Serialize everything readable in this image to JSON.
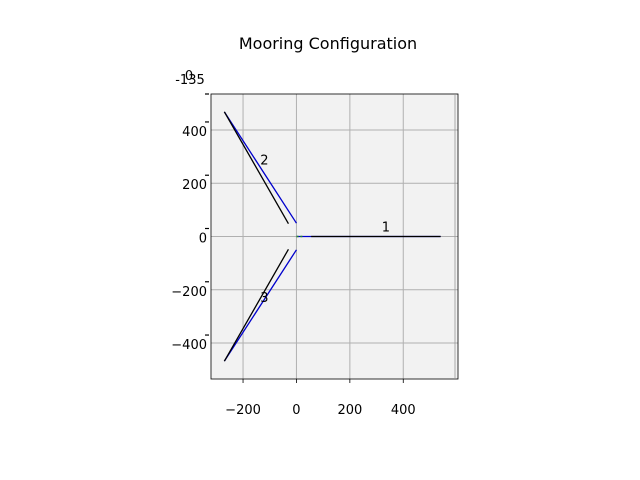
{
  "chart_data": {
    "type": "line",
    "title": "Mooring Configuration",
    "xlabel": "",
    "ylabel": "",
    "xlim": [
      -320,
      605
    ],
    "ylim": [
      -535,
      535
    ],
    "z_axis_tick_labels": [
      "0",
      "-135"
    ],
    "x_ticks": [
      -200,
      0,
      200,
      400
    ],
    "x_tick_labels": [
      "−200",
      "0",
      "200",
      "400"
    ],
    "y_ticks": [
      -400,
      -200,
      0,
      200,
      400
    ],
    "y_tick_labels": [
      "−400",
      "−200",
      "0",
      "200",
      "400"
    ],
    "grid": true,
    "plot_background": "#f2f2f2",
    "series": [
      {
        "color": "#0000cc",
        "x": [
          0,
          540
        ],
        "y": [
          0,
          0
        ]
      },
      {
        "color": "#0000cc",
        "x": [
          0,
          -270
        ],
        "y": [
          50,
          468
        ]
      },
      {
        "color": "#0000cc",
        "x": [
          0,
          -270
        ],
        "y": [
          -50,
          -468
        ]
      },
      {
        "color": "#000000",
        "x": [
          55,
          540
        ],
        "y": [
          0,
          0
        ]
      },
      {
        "color": "#000000",
        "x": [
          -30,
          -270
        ],
        "y": [
          48,
          468
        ]
      },
      {
        "color": "#000000",
        "x": [
          -30,
          -270
        ],
        "y": [
          -48,
          -468
        ]
      }
    ],
    "line_labels": [
      {
        "text": "1",
        "x": 335,
        "y": 18
      },
      {
        "text": "2",
        "x": -120,
        "y": 270
      },
      {
        "text": "3",
        "x": -120,
        "y": -245
      }
    ],
    "vessel_color": "#228b22"
  }
}
